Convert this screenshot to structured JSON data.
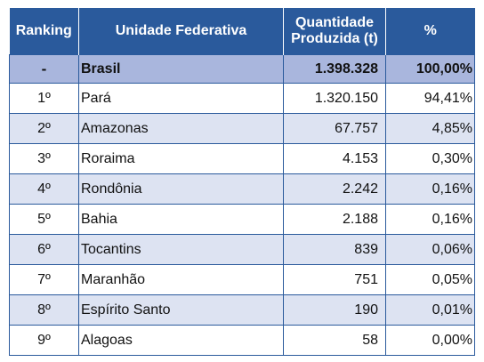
{
  "header": {
    "ranking": "Ranking",
    "uf": "Unidade Federativa",
    "qty": "Quantidade Produzida (t)",
    "pct": "%"
  },
  "total": {
    "ranking": "-",
    "uf": "Brasil",
    "qty": "1.398.328",
    "pct": "100,00%"
  },
  "rows": [
    {
      "ranking": "1º",
      "uf": "Pará",
      "qty": "1.320.150",
      "pct": "94,41%"
    },
    {
      "ranking": "2º",
      "uf": "Amazonas",
      "qty": "67.757",
      "pct": "4,85%"
    },
    {
      "ranking": "3º",
      "uf": "Roraima",
      "qty": "4.153",
      "pct": "0,30%"
    },
    {
      "ranking": "4º",
      "uf": "Rondônia",
      "qty": "2.242",
      "pct": "0,16%"
    },
    {
      "ranking": "5º",
      "uf": "Bahia",
      "qty": "2.188",
      "pct": "0,16%"
    },
    {
      "ranking": "6º",
      "uf": "Tocantins",
      "qty": "839",
      "pct": "0,06%"
    },
    {
      "ranking": "7º",
      "uf": "Maranhão",
      "qty": "751",
      "pct": "0,05%"
    },
    {
      "ranking": "8º",
      "uf": "Espírito Santo",
      "qty": "190",
      "pct": "0,01%"
    },
    {
      "ranking": "9º",
      "uf": "Alagoas",
      "qty": "58",
      "pct": "0,00%"
    }
  ],
  "colors": {
    "header": "#2a5a9c",
    "total_row": "#a9b6dd",
    "stripe": "#dde3f2"
  }
}
